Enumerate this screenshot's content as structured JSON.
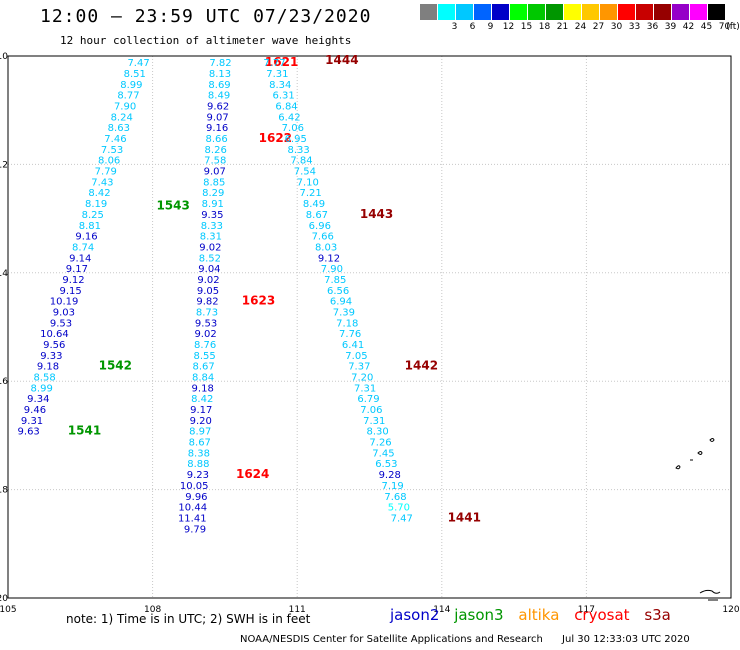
{
  "header": {
    "title": "12:00 — 23:59 UTC 07/23/2020",
    "subtitle": "12 hour collection of altimeter wave heights"
  },
  "legend": {
    "unit": "(ft)",
    "items": [
      {
        "label": "",
        "color": "#7f7f7f"
      },
      {
        "label": "3",
        "color": "#00ffff"
      },
      {
        "label": "6",
        "color": "#00c8ff"
      },
      {
        "label": "9",
        "color": "#0064ff"
      },
      {
        "label": "12",
        "color": "#0000c8"
      },
      {
        "label": "15",
        "color": "#00ff00"
      },
      {
        "label": "18",
        "color": "#00c800"
      },
      {
        "label": "21",
        "color": "#009600"
      },
      {
        "label": "24",
        "color": "#ffff00"
      },
      {
        "label": "27",
        "color": "#ffc800"
      },
      {
        "label": "30",
        "color": "#ff9600"
      },
      {
        "label": "33",
        "color": "#ff0000"
      },
      {
        "label": "36",
        "color": "#c80000"
      },
      {
        "label": "39",
        "color": "#960000"
      },
      {
        "label": "42",
        "color": "#9600c8"
      },
      {
        "label": "45",
        "color": "#ff00ff"
      },
      {
        "label": "70",
        "color": "#000000"
      }
    ]
  },
  "footer": {
    "note": "note: 1) Time is in UTC; 2) SWH is in feet",
    "satellites": [
      {
        "name": "jason2",
        "color": "#0000c8"
      },
      {
        "name": "jason3",
        "color": "#009600"
      },
      {
        "name": "altika",
        "color": "#ff9600"
      },
      {
        "name": "cryosat",
        "color": "#ff0000"
      },
      {
        "name": "s3a",
        "color": "#960000"
      }
    ],
    "credit": "NOAA/NESDIS Center for Satellite Applications and Research",
    "timestamp": "Jul 30 12:33:03 UTC 2020"
  },
  "chart_data": {
    "type": "scatter",
    "xlim": [
      105,
      120
    ],
    "ylim": [
      10,
      20
    ],
    "y_inverted": true,
    "x_ticks": [
      "105",
      "108",
      "111",
      "114",
      "117",
      "120"
    ],
    "y_ticks": [
      "10",
      "12",
      "14",
      "16",
      "18",
      "20"
    ],
    "grid": true,
    "passes": [
      {
        "name": "jason3",
        "color_key": "jason3",
        "track": [
          [
            108.04,
            10.0
          ],
          [
            106.28,
            15.3
          ],
          [
            105.2,
            17.6
          ]
        ],
        "points": [
          {
            "x": 107.94,
            "y": 10.04,
            "v": "7.47",
            "c": "#00c8ff"
          },
          {
            "x": 107.86,
            "y": 10.24,
            "v": "8.51",
            "c": "#00c8ff"
          },
          {
            "x": 107.79,
            "y": 10.44,
            "v": "8.99",
            "c": "#00c8ff"
          },
          {
            "x": 107.73,
            "y": 10.64,
            "v": "8.77",
            "c": "#00c8ff"
          },
          {
            "x": 107.66,
            "y": 10.84,
            "v": "7.90",
            "c": "#00c8ff"
          },
          {
            "x": 107.59,
            "y": 11.04,
            "v": "8.24",
            "c": "#00c8ff"
          },
          {
            "x": 107.53,
            "y": 11.24,
            "v": "8.63",
            "c": "#00c8ff"
          },
          {
            "x": 107.46,
            "y": 11.44,
            "v": "7.46",
            "c": "#00c8ff"
          },
          {
            "x": 107.39,
            "y": 11.64,
            "v": "7.53",
            "c": "#00c8ff"
          },
          {
            "x": 107.33,
            "y": 11.84,
            "v": "8.06",
            "c": "#00c8ff"
          },
          {
            "x": 107.26,
            "y": 12.04,
            "v": "7.79",
            "c": "#00c8ff"
          },
          {
            "x": 107.19,
            "y": 12.24,
            "v": "7.43",
            "c": "#00c8ff"
          },
          {
            "x": 107.13,
            "y": 12.44,
            "v": "8.42",
            "c": "#00c8ff"
          },
          {
            "x": 107.06,
            "y": 12.64,
            "v": "8.19",
            "c": "#00c8ff"
          },
          {
            "x": 106.99,
            "y": 12.84,
            "v": "8.25",
            "c": "#00c8ff"
          },
          {
            "x": 106.93,
            "y": 13.04,
            "v": "8.81",
            "c": "#00c8ff"
          },
          {
            "x": 106.86,
            "y": 13.24,
            "v": "9.16",
            "c": "#0000c8"
          },
          {
            "x": 106.79,
            "y": 13.44,
            "v": "8.74",
            "c": "#00c8ff"
          },
          {
            "x": 106.73,
            "y": 13.64,
            "v": "9.14",
            "c": "#0000c8"
          },
          {
            "x": 106.66,
            "y": 13.84,
            "v": "9.17",
            "c": "#0000c8"
          },
          {
            "x": 106.59,
            "y": 14.04,
            "v": "9.12",
            "c": "#0000c8"
          },
          {
            "x": 106.53,
            "y": 14.24,
            "v": "9.15",
            "c": "#0000c8"
          },
          {
            "x": 106.46,
            "y": 14.44,
            "v": "10.19",
            "c": "#0000c8"
          },
          {
            "x": 106.39,
            "y": 14.64,
            "v": "9.03",
            "c": "#0000c8"
          },
          {
            "x": 106.33,
            "y": 14.84,
            "v": "9.53",
            "c": "#0000c8"
          },
          {
            "x": 106.26,
            "y": 15.04,
            "v": "10.64",
            "c": "#0000c8"
          },
          {
            "x": 106.19,
            "y": 15.24,
            "v": "9.56",
            "c": "#0000c8"
          },
          {
            "x": 106.13,
            "y": 15.44,
            "v": "9.33",
            "c": "#0000c8"
          },
          {
            "x": 106.06,
            "y": 15.64,
            "v": "9.18",
            "c": "#0000c8"
          },
          {
            "x": 105.99,
            "y": 15.84,
            "v": "8.58",
            "c": "#00c8ff"
          },
          {
            "x": 105.93,
            "y": 16.04,
            "v": "8.99",
            "c": "#00c8ff"
          },
          {
            "x": 105.86,
            "y": 16.24,
            "v": "9.34",
            "c": "#0000c8"
          },
          {
            "x": 105.79,
            "y": 16.44,
            "v": "9.46",
            "c": "#0000c8"
          },
          {
            "x": 105.73,
            "y": 16.64,
            "v": "9.31",
            "c": "#0000c8"
          },
          {
            "x": 105.66,
            "y": 16.84,
            "v": "9.63",
            "c": "#0000c8"
          }
        ],
        "times": [
          {
            "x": 108.08,
            "y": 12.68,
            "t": "1543"
          },
          {
            "x": 106.88,
            "y": 15.64,
            "t": "1542"
          },
          {
            "x": 106.24,
            "y": 16.84,
            "t": "1541"
          }
        ]
      },
      {
        "name": "cryosat",
        "color_key": "cryosat",
        "track": [
          [
            109.7,
            10.0
          ],
          [
            108.98,
            20.0
          ]
        ],
        "points": [
          {
            "x": 109.64,
            "y": 10.04,
            "v": "7.82",
            "c": "#00c8ff"
          },
          {
            "x": 109.63,
            "y": 10.24,
            "v": "8.13",
            "c": "#00c8ff"
          },
          {
            "x": 109.62,
            "y": 10.44,
            "v": "8.69",
            "c": "#00c8ff"
          },
          {
            "x": 109.61,
            "y": 10.64,
            "v": "8.49",
            "c": "#00c8ff"
          },
          {
            "x": 109.59,
            "y": 10.84,
            "v": "9.62",
            "c": "#0000c8"
          },
          {
            "x": 109.58,
            "y": 11.04,
            "v": "9.07",
            "c": "#0000c8"
          },
          {
            "x": 109.57,
            "y": 11.24,
            "v": "9.16",
            "c": "#0000c8"
          },
          {
            "x": 109.56,
            "y": 11.44,
            "v": "8.66",
            "c": "#00c8ff"
          },
          {
            "x": 109.54,
            "y": 11.64,
            "v": "8.26",
            "c": "#00c8ff"
          },
          {
            "x": 109.53,
            "y": 11.84,
            "v": "7.58",
            "c": "#00c8ff"
          },
          {
            "x": 109.52,
            "y": 12.04,
            "v": "9.07",
            "c": "#0000c8"
          },
          {
            "x": 109.51,
            "y": 12.24,
            "v": "8.85",
            "c": "#00c8ff"
          },
          {
            "x": 109.49,
            "y": 12.44,
            "v": "8.29",
            "c": "#00c8ff"
          },
          {
            "x": 109.48,
            "y": 12.64,
            "v": "8.91",
            "c": "#00c8ff"
          },
          {
            "x": 109.47,
            "y": 12.84,
            "v": "9.35",
            "c": "#0000c8"
          },
          {
            "x": 109.46,
            "y": 13.04,
            "v": "8.33",
            "c": "#00c8ff"
          },
          {
            "x": 109.44,
            "y": 13.24,
            "v": "8.31",
            "c": "#00c8ff"
          },
          {
            "x": 109.43,
            "y": 13.44,
            "v": "9.02",
            "c": "#0000c8"
          },
          {
            "x": 109.42,
            "y": 13.64,
            "v": "8.52",
            "c": "#00c8ff"
          },
          {
            "x": 109.41,
            "y": 13.84,
            "v": "9.04",
            "c": "#0000c8"
          },
          {
            "x": 109.39,
            "y": 14.04,
            "v": "9.02",
            "c": "#0000c8"
          },
          {
            "x": 109.38,
            "y": 14.24,
            "v": "9.05",
            "c": "#0000c8"
          },
          {
            "x": 109.37,
            "y": 14.44,
            "v": "9.82",
            "c": "#0000c8"
          },
          {
            "x": 109.36,
            "y": 14.64,
            "v": "8.73",
            "c": "#00c8ff"
          },
          {
            "x": 109.34,
            "y": 14.84,
            "v": "9.53",
            "c": "#0000c8"
          },
          {
            "x": 109.33,
            "y": 15.04,
            "v": "9.02",
            "c": "#0000c8"
          },
          {
            "x": 109.32,
            "y": 15.24,
            "v": "8.76",
            "c": "#00c8ff"
          },
          {
            "x": 109.31,
            "y": 15.44,
            "v": "8.55",
            "c": "#00c8ff"
          },
          {
            "x": 109.29,
            "y": 15.64,
            "v": "8.67",
            "c": "#00c8ff"
          },
          {
            "x": 109.28,
            "y": 15.84,
            "v": "8.84",
            "c": "#00c8ff"
          },
          {
            "x": 109.27,
            "y": 16.04,
            "v": "9.18",
            "c": "#0000c8"
          },
          {
            "x": 109.26,
            "y": 16.24,
            "v": "8.42",
            "c": "#00c8ff"
          },
          {
            "x": 109.24,
            "y": 16.44,
            "v": "9.17",
            "c": "#0000c8"
          },
          {
            "x": 109.23,
            "y": 16.64,
            "v": "9.20",
            "c": "#0000c8"
          },
          {
            "x": 109.22,
            "y": 16.84,
            "v": "8.97",
            "c": "#00c8ff"
          },
          {
            "x": 109.21,
            "y": 17.04,
            "v": "8.67",
            "c": "#00c8ff"
          },
          {
            "x": 109.19,
            "y": 17.24,
            "v": "8.38",
            "c": "#00c8ff"
          },
          {
            "x": 109.18,
            "y": 17.44,
            "v": "8.88",
            "c": "#00c8ff"
          },
          {
            "x": 109.17,
            "y": 17.64,
            "v": "9.23",
            "c": "#0000c8"
          },
          {
            "x": 109.16,
            "y": 17.84,
            "v": "10.05",
            "c": "#0000c8"
          },
          {
            "x": 109.14,
            "y": 18.04,
            "v": "9.96",
            "c": "#0000c8"
          },
          {
            "x": 109.13,
            "y": 18.24,
            "v": "10.44",
            "c": "#0000c8"
          },
          {
            "x": 109.12,
            "y": 18.44,
            "v": "11.41",
            "c": "#0000c8"
          },
          {
            "x": 109.11,
            "y": 18.64,
            "v": "9.79",
            "c": "#0000c8"
          }
        ],
        "times": [
          {
            "x": 110.33,
            "y": 10.04,
            "t": "1621"
          },
          {
            "x": 110.2,
            "y": 11.44,
            "t": "1622"
          },
          {
            "x": 109.85,
            "y": 14.44,
            "t": "1623"
          },
          {
            "x": 109.73,
            "y": 17.64,
            "t": "1624"
          }
        ]
      },
      {
        "name": "s3a",
        "color_key": "s3a",
        "track": [
          [
            110.98,
            10.0
          ],
          [
            114.12,
            20.0
          ]
        ],
        "points": [
          {
            "x": 110.76,
            "y": 10.04,
            "v": "7.77",
            "c": "#00c8ff"
          },
          {
            "x": 110.82,
            "y": 10.24,
            "v": "7.31",
            "c": "#00c8ff"
          },
          {
            "x": 110.88,
            "y": 10.44,
            "v": "8.34",
            "c": "#00c8ff"
          },
          {
            "x": 110.95,
            "y": 10.64,
            "v": "6.31",
            "c": "#00c8ff"
          },
          {
            "x": 111.01,
            "y": 10.84,
            "v": "6.84",
            "c": "#00c8ff"
          },
          {
            "x": 111.07,
            "y": 11.04,
            "v": "6.42",
            "c": "#00c8ff"
          },
          {
            "x": 111.14,
            "y": 11.24,
            "v": "7.06",
            "c": "#00c8ff"
          },
          {
            "x": 111.2,
            "y": 11.44,
            "v": "6.95",
            "c": "#00c8ff"
          },
          {
            "x": 111.26,
            "y": 11.64,
            "v": "8.33",
            "c": "#00c8ff"
          },
          {
            "x": 111.32,
            "y": 11.84,
            "v": "7.84",
            "c": "#00c8ff"
          },
          {
            "x": 111.39,
            "y": 12.04,
            "v": "7.54",
            "c": "#00c8ff"
          },
          {
            "x": 111.45,
            "y": 12.24,
            "v": "7.10",
            "c": "#00c8ff"
          },
          {
            "x": 111.51,
            "y": 12.44,
            "v": "7.21",
            "c": "#00c8ff"
          },
          {
            "x": 111.58,
            "y": 12.64,
            "v": "8.49",
            "c": "#00c8ff"
          },
          {
            "x": 111.64,
            "y": 12.84,
            "v": "8.67",
            "c": "#00c8ff"
          },
          {
            "x": 111.7,
            "y": 13.04,
            "v": "6.96",
            "c": "#00c8ff"
          },
          {
            "x": 111.76,
            "y": 13.24,
            "v": "7.66",
            "c": "#00c8ff"
          },
          {
            "x": 111.83,
            "y": 13.44,
            "v": "8.03",
            "c": "#00c8ff"
          },
          {
            "x": 111.89,
            "y": 13.64,
            "v": "9.12",
            "c": "#0000c8"
          },
          {
            "x": 111.95,
            "y": 13.84,
            "v": "7.90",
            "c": "#00c8ff"
          },
          {
            "x": 112.02,
            "y": 14.04,
            "v": "7.85",
            "c": "#00c8ff"
          },
          {
            "x": 112.08,
            "y": 14.24,
            "v": "6.56",
            "c": "#00c8ff"
          },
          {
            "x": 112.14,
            "y": 14.44,
            "v": "6.94",
            "c": "#00c8ff"
          },
          {
            "x": 112.2,
            "y": 14.64,
            "v": "7.39",
            "c": "#00c8ff"
          },
          {
            "x": 112.27,
            "y": 14.84,
            "v": "7.18",
            "c": "#00c8ff"
          },
          {
            "x": 112.33,
            "y": 15.04,
            "v": "7.76",
            "c": "#00c8ff"
          },
          {
            "x": 112.39,
            "y": 15.24,
            "v": "6.41",
            "c": "#00c8ff"
          },
          {
            "x": 112.46,
            "y": 15.44,
            "v": "7.05",
            "c": "#00c8ff"
          },
          {
            "x": 112.52,
            "y": 15.64,
            "v": "7.37",
            "c": "#00c8ff"
          },
          {
            "x": 112.58,
            "y": 15.84,
            "v": "7.20",
            "c": "#00c8ff"
          },
          {
            "x": 112.64,
            "y": 16.04,
            "v": "7.31",
            "c": "#00c8ff"
          },
          {
            "x": 112.71,
            "y": 16.24,
            "v": "6.79",
            "c": "#00c8ff"
          },
          {
            "x": 112.77,
            "y": 16.44,
            "v": "7.06",
            "c": "#00c8ff"
          },
          {
            "x": 112.83,
            "y": 16.64,
            "v": "7.31",
            "c": "#00c8ff"
          },
          {
            "x": 112.9,
            "y": 16.84,
            "v": "8.30",
            "c": "#00c8ff"
          },
          {
            "x": 112.96,
            "y": 17.04,
            "v": "7.26",
            "c": "#00c8ff"
          },
          {
            "x": 113.02,
            "y": 17.24,
            "v": "7.45",
            "c": "#00c8ff"
          },
          {
            "x": 113.08,
            "y": 17.44,
            "v": "6.53",
            "c": "#00c8ff"
          },
          {
            "x": 113.15,
            "y": 17.64,
            "v": "9.28",
            "c": "#0000c8"
          },
          {
            "x": 113.21,
            "y": 17.84,
            "v": "7.19",
            "c": "#00c8ff"
          },
          {
            "x": 113.27,
            "y": 18.04,
            "v": "7.68",
            "c": "#00c8ff"
          },
          {
            "x": 113.34,
            "y": 18.24,
            "v": "5.70",
            "c": "#00ffff"
          },
          {
            "x": 113.4,
            "y": 18.44,
            "v": "7.47",
            "c": "#00c8ff"
          }
        ],
        "times": [
          {
            "x": 111.58,
            "y": 10.0,
            "t": "1444"
          },
          {
            "x": 112.3,
            "y": 12.84,
            "t": "1443"
          },
          {
            "x": 113.23,
            "y": 15.64,
            "t": "1442"
          },
          {
            "x": 114.12,
            "y": 18.44,
            "t": "1441"
          }
        ]
      }
    ]
  }
}
